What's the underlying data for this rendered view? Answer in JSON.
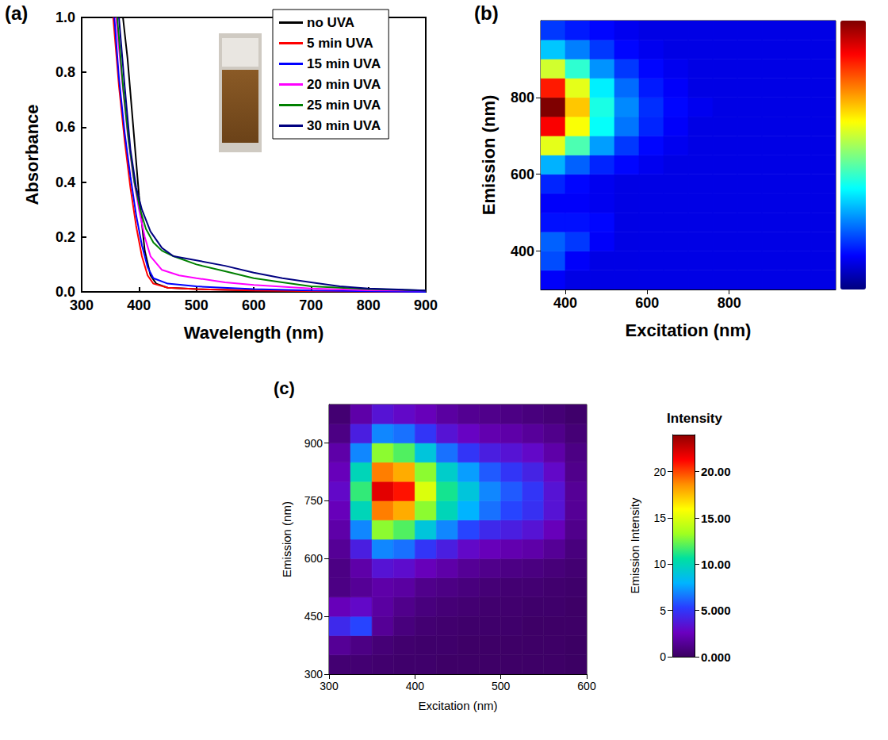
{
  "chart_data": [
    {
      "title": "(a)",
      "type": "line",
      "xlabel": "Wavelength (nm)",
      "ylabel": "Absorbance",
      "xlim": [
        300,
        900
      ],
      "xticks": [
        300,
        400,
        500,
        600,
        700,
        800,
        900
      ],
      "ylim": [
        0,
        1
      ],
      "yticks": [
        {
          "value": 0,
          "label": "0.0"
        },
        0.2,
        0.4,
        0.6,
        0.8,
        {
          "value": 1,
          "label": "1.0"
        }
      ],
      "grid": false,
      "legend": "upper right",
      "series": [
        {
          "name": "no UVA",
          "color": "#000000",
          "x": [
            372,
            380,
            390,
            400,
            410,
            420,
            430,
            450,
            500,
            600,
            700,
            800,
            900
          ],
          "values": [
            1.0,
            0.85,
            0.6,
            0.35,
            0.15,
            0.06,
            0.03,
            0.015,
            0.01,
            0.005,
            0.003,
            0.002,
            0.0
          ]
        },
        {
          "name": "5 min UVA",
          "color": "#ff0000",
          "x": [
            355,
            365,
            375,
            385,
            395,
            405,
            415,
            425,
            450,
            500,
            600,
            700,
            900
          ],
          "values": [
            1.0,
            0.75,
            0.55,
            0.38,
            0.24,
            0.13,
            0.06,
            0.03,
            0.015,
            0.01,
            0.005,
            0.003,
            0.0
          ]
        },
        {
          "name": "15 min UVA",
          "color": "#0000ff",
          "x": [
            357,
            365,
            375,
            385,
            395,
            405,
            415,
            425,
            450,
            500,
            600,
            700,
            900
          ],
          "values": [
            1.0,
            0.78,
            0.58,
            0.42,
            0.28,
            0.17,
            0.09,
            0.05,
            0.03,
            0.02,
            0.01,
            0.005,
            0.0
          ]
        },
        {
          "name": "20 min UVA",
          "color": "#ff00ff",
          "x": [
            360,
            370,
            380,
            390,
            400,
            410,
            420,
            440,
            470,
            500,
            550,
            600,
            700,
            800,
            900
          ],
          "values": [
            1.0,
            0.78,
            0.58,
            0.42,
            0.3,
            0.2,
            0.13,
            0.08,
            0.06,
            0.05,
            0.035,
            0.025,
            0.012,
            0.006,
            0.005
          ]
        },
        {
          "name": "25 min UVA",
          "color": "#008000",
          "x": [
            362,
            372,
            382,
            392,
            402,
            412,
            425,
            440,
            460,
            500,
            550,
            600,
            650,
            700,
            800,
            900
          ],
          "values": [
            1.0,
            0.75,
            0.55,
            0.4,
            0.3,
            0.23,
            0.18,
            0.15,
            0.13,
            0.1,
            0.075,
            0.05,
            0.035,
            0.02,
            0.01,
            0.005
          ]
        },
        {
          "name": "30 min UVA",
          "color": "#000080",
          "x": [
            365,
            375,
            385,
            395,
            405,
            420,
            440,
            460,
            500,
            550,
            600,
            650,
            700,
            750,
            800,
            900
          ],
          "values": [
            1.0,
            0.75,
            0.52,
            0.38,
            0.3,
            0.22,
            0.16,
            0.13,
            0.115,
            0.095,
            0.07,
            0.05,
            0.035,
            0.02,
            0.012,
            0.005
          ]
        }
      ]
    },
    {
      "title": "(b)",
      "type": "heatmap",
      "xlabel": "Excitation (nm)",
      "ylabel": "Emission (nm)",
      "xlim": [
        340,
        1060
      ],
      "xticks": [
        400,
        600,
        800
      ],
      "ylim": [
        300,
        1000
      ],
      "yticks": [
        400,
        600,
        800
      ],
      "grid": false,
      "x": [
        370,
        430,
        490,
        550,
        610,
        670,
        730,
        790,
        850,
        910,
        970,
        1030
      ],
      "y": [
        325,
        375,
        425,
        475,
        525,
        575,
        625,
        675,
        725,
        775,
        825,
        875,
        925,
        975
      ],
      "values": [
        [
          0.12,
          0.1,
          0.1,
          0.1,
          0.1,
          0.1,
          0.1,
          0.1,
          0.1,
          0.1,
          0.1,
          0.1
        ],
        [
          0.2,
          0.12,
          0.1,
          0.1,
          0.1,
          0.1,
          0.1,
          0.1,
          0.1,
          0.1,
          0.1,
          0.1
        ],
        [
          0.22,
          0.18,
          0.12,
          0.1,
          0.1,
          0.1,
          0.1,
          0.1,
          0.1,
          0.1,
          0.1,
          0.1
        ],
        [
          0.14,
          0.14,
          0.13,
          0.1,
          0.1,
          0.1,
          0.1,
          0.1,
          0.1,
          0.1,
          0.1,
          0.1
        ],
        [
          0.12,
          0.12,
          0.11,
          0.1,
          0.1,
          0.1,
          0.1,
          0.1,
          0.1,
          0.1,
          0.1,
          0.1
        ],
        [
          0.16,
          0.13,
          0.11,
          0.1,
          0.1,
          0.1,
          0.1,
          0.1,
          0.1,
          0.1,
          0.1,
          0.1
        ],
        [
          0.3,
          0.22,
          0.16,
          0.13,
          0.11,
          0.1,
          0.1,
          0.1,
          0.1,
          0.1,
          0.1,
          0.1
        ],
        [
          0.6,
          0.45,
          0.28,
          0.18,
          0.13,
          0.11,
          0.1,
          0.1,
          0.1,
          0.1,
          0.1,
          0.1
        ],
        [
          0.88,
          0.62,
          0.38,
          0.24,
          0.16,
          0.12,
          0.1,
          0.1,
          0.1,
          0.1,
          0.1,
          0.1
        ],
        [
          1.0,
          0.68,
          0.4,
          0.26,
          0.17,
          0.13,
          0.11,
          0.1,
          0.1,
          0.1,
          0.1,
          0.1
        ],
        [
          0.85,
          0.6,
          0.36,
          0.23,
          0.15,
          0.12,
          0.1,
          0.1,
          0.1,
          0.1,
          0.1,
          0.1
        ],
        [
          0.58,
          0.42,
          0.27,
          0.18,
          0.13,
          0.11,
          0.1,
          0.1,
          0.1,
          0.1,
          0.1,
          0.1
        ],
        [
          0.32,
          0.25,
          0.18,
          0.13,
          0.11,
          0.1,
          0.1,
          0.1,
          0.1,
          0.1,
          0.1,
          0.1
        ],
        [
          0.18,
          0.15,
          0.13,
          0.11,
          0.1,
          0.1,
          0.1,
          0.1,
          0.1,
          0.1,
          0.1,
          0.1
        ]
      ],
      "colorbar": {
        "range": [
          0,
          1
        ],
        "colors": [
          "#00007f",
          "#0000ff",
          "#007fff",
          "#00ffff",
          "#7fff7f",
          "#ffff00",
          "#ff7f00",
          "#ff0000",
          "#7f0000"
        ]
      }
    },
    {
      "title": "(c)",
      "type": "heatmap",
      "xlabel": "Excitation (nm)",
      "ylabel": "Emission (nm)",
      "zlabel": "Emission Intensity",
      "zticks": [
        0,
        5,
        10,
        15,
        20
      ],
      "xlim": [
        300,
        600
      ],
      "xticks": [
        300,
        400,
        500,
        600
      ],
      "ylim": [
        300,
        1000
      ],
      "yticks": [
        300,
        450,
        600,
        750,
        900
      ],
      "grid": false,
      "x": [
        312.5,
        337.5,
        362.5,
        387.5,
        412.5,
        437.5,
        462.5,
        487.5,
        512.5,
        537.5,
        562.5,
        587.5
      ],
      "y": [
        325,
        375,
        425,
        475,
        525,
        575,
        625,
        675,
        725,
        775,
        825,
        875,
        925,
        975
      ],
      "values": [
        [
          0.5,
          0.5,
          0.4,
          0.3,
          0.3,
          0.2,
          0.2,
          0.2,
          0.2,
          0.2,
          0.2,
          0.1
        ],
        [
          1.5,
          1.0,
          0.6,
          0.4,
          0.3,
          0.3,
          0.2,
          0.2,
          0.2,
          0.2,
          0.2,
          0.1
        ],
        [
          4.5,
          5.5,
          1.5,
          0.8,
          0.5,
          0.4,
          0.3,
          0.3,
          0.3,
          0.2,
          0.2,
          0.2
        ],
        [
          2.5,
          3.0,
          1.8,
          1.2,
          0.8,
          0.6,
          0.5,
          0.4,
          0.4,
          0.3,
          0.3,
          0.2
        ],
        [
          1.0,
          1.5,
          2.0,
          1.8,
          1.2,
          1.0,
          0.8,
          0.6,
          0.5,
          0.5,
          0.4,
          0.3
        ],
        [
          1.0,
          2.0,
          3.5,
          3.2,
          2.5,
          2.0,
          1.5,
          1.2,
          1.0,
          0.9,
          0.7,
          0.5
        ],
        [
          1.5,
          4.0,
          7.0,
          6.5,
          5.0,
          4.0,
          3.0,
          2.5,
          2.2,
          2.0,
          1.5,
          0.8
        ],
        [
          2.0,
          7.0,
          13.0,
          12.0,
          9.0,
          7.0,
          5.5,
          4.5,
          4.0,
          3.5,
          2.5,
          1.2
        ],
        [
          2.5,
          10.0,
          19.0,
          18.0,
          13.0,
          10.0,
          8.0,
          6.5,
          5.5,
          4.8,
          3.5,
          1.5
        ],
        [
          3.0,
          11.5,
          22.0,
          21.0,
          15.0,
          11.0,
          9.0,
          7.0,
          6.0,
          5.0,
          3.5,
          1.5
        ],
        [
          2.5,
          10.0,
          19.0,
          18.0,
          13.0,
          9.5,
          7.5,
          6.0,
          5.0,
          4.2,
          3.0,
          1.2
        ],
        [
          2.0,
          7.0,
          13.0,
          12.0,
          9.0,
          6.5,
          5.0,
          4.0,
          3.5,
          3.0,
          2.0,
          1.0
        ],
        [
          1.0,
          4.0,
          7.0,
          6.5,
          5.0,
          3.5,
          2.8,
          2.2,
          2.0,
          1.6,
          1.2,
          0.6
        ],
        [
          0.5,
          2.0,
          3.5,
          3.0,
          2.5,
          1.8,
          1.4,
          1.2,
          1.0,
          0.8,
          0.6,
          0.3
        ]
      ],
      "colorbar": {
        "title": "Intensity",
        "range": [
          0,
          24
        ],
        "ticks": [
          {
            "value": 0,
            "label": "0.000"
          },
          {
            "value": 5,
            "label": "5.000"
          },
          {
            "value": 10,
            "label": "10.00"
          },
          {
            "value": 15,
            "label": "15.00"
          },
          {
            "value": 20,
            "label": "20.00"
          }
        ],
        "colors": [
          "#3a0060",
          "#6a00c0",
          "#2a3cff",
          "#00b4ff",
          "#00e0a0",
          "#a0ff20",
          "#ffff00",
          "#ff9000",
          "#ff0000",
          "#900000"
        ]
      }
    }
  ]
}
